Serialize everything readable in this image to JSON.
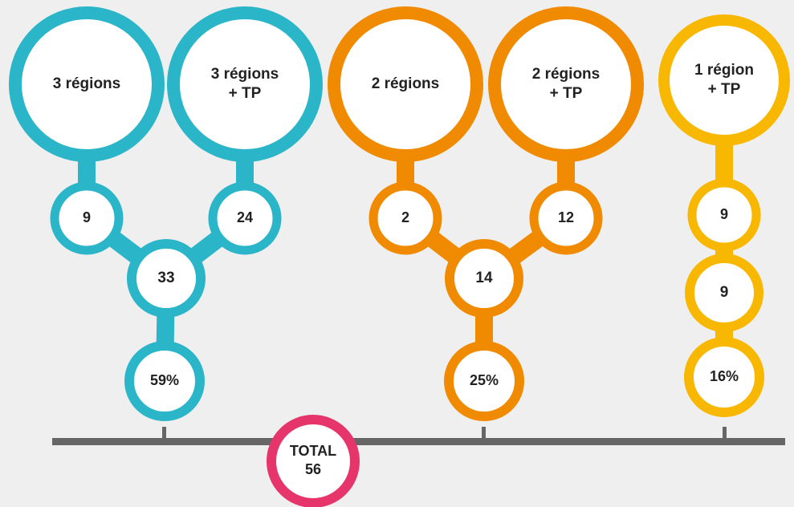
{
  "groups": [
    {
      "sources": [
        {
          "label": [
            "3 régions"
          ],
          "count": "9"
        },
        {
          "label": [
            "3 régions",
            "+ TP"
          ],
          "count": "24"
        }
      ],
      "sum": "33",
      "share": "59%",
      "color": "#2bb5c9"
    },
    {
      "sources": [
        {
          "label": [
            "2 régions"
          ],
          "count": "2"
        },
        {
          "label": [
            "2 régions",
            "+ TP"
          ],
          "count": "12"
        }
      ],
      "sum": "14",
      "share": "25%",
      "color": "#f08a00"
    },
    {
      "sources": [
        {
          "label": [
            "1 région",
            "+ TP"
          ],
          "count": "9"
        }
      ],
      "sum": "9",
      "share": "16%",
      "color": "#f8b700"
    }
  ],
  "total": {
    "label": "TOTAL",
    "value": "56",
    "color": "#e5356b"
  }
}
